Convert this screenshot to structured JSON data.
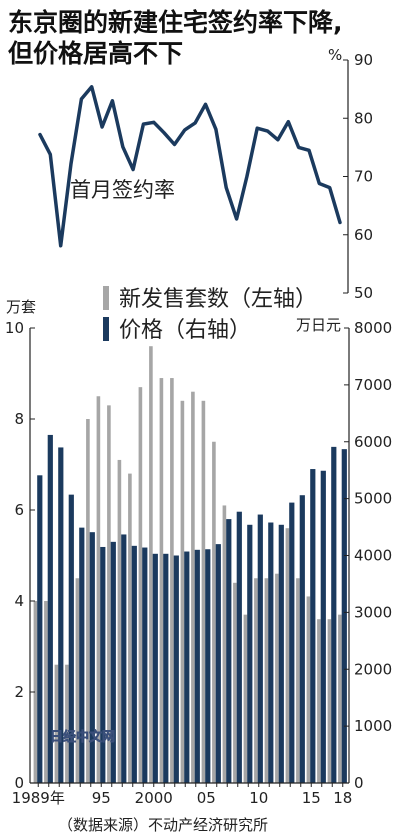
{
  "title_line1": "东京圈的新建住宅签约率下降,",
  "title_line2": "但价格居高不下",
  "source": "（数据来源）不动产经济研究所",
  "watermark": "日经中文网",
  "colors": {
    "sales": "#a6a6a6",
    "price": "#1b3a5e",
    "line": "#1b3a5e"
  },
  "chart_data": [
    {
      "type": "line",
      "label": "首月签约率",
      "unit": "%",
      "x": [
        1989,
        1990,
        1991,
        1992,
        1993,
        1994,
        1995,
        1996,
        1997,
        1998,
        1999,
        2000,
        2001,
        2002,
        2003,
        2004,
        2005,
        2006,
        2007,
        2008,
        2009,
        2010,
        2011,
        2012,
        2013,
        2014,
        2015,
        2016,
        2017,
        2018
      ],
      "values": [
        77.2,
        73.8,
        58.1,
        72.2,
        83.3,
        85.4,
        78.5,
        83.0,
        75.1,
        71.2,
        79.0,
        79.3,
        77.5,
        75.5,
        78.0,
        79.2,
        82.4,
        78.1,
        68.1,
        62.7,
        70.0,
        78.3,
        77.8,
        76.3,
        79.4,
        75.0,
        74.5,
        68.8,
        68.1,
        62.1
      ],
      "ylim": [
        50,
        90
      ],
      "yticks": [
        "50",
        "60",
        "70",
        "80",
        "90"
      ]
    },
    {
      "type": "bar",
      "x": [
        1989,
        1990,
        1991,
        1992,
        1993,
        1994,
        1995,
        1996,
        1997,
        1998,
        1999,
        2000,
        2001,
        2002,
        2003,
        2004,
        2005,
        2006,
        2007,
        2008,
        2009,
        2010,
        2011,
        2012,
        2013,
        2014,
        2015,
        2016,
        2017,
        2018
      ],
      "xtick_labels": [
        {
          "year": 1989,
          "label": "1989年"
        },
        {
          "year": 1995,
          "label": "95"
        },
        {
          "year": 2000,
          "label": "2000"
        },
        {
          "year": 2005,
          "label": "05"
        },
        {
          "year": 2010,
          "label": "10"
        },
        {
          "year": 2015,
          "label": "15"
        },
        {
          "year": 2018,
          "label": "18"
        }
      ],
      "series": [
        {
          "name": "新发售套数（左轴）",
          "axis": "left",
          "unit": "万套",
          "values": [
            4.0,
            4.0,
            2.6,
            2.6,
            4.5,
            8.0,
            8.5,
            8.3,
            7.1,
            6.8,
            8.7,
            9.6,
            8.9,
            8.9,
            8.4,
            8.6,
            8.4,
            7.5,
            6.1,
            4.4,
            3.7,
            4.5,
            4.5,
            4.6,
            5.6,
            4.5,
            4.1,
            3.6,
            3.6,
            3.7
          ],
          "ylim": [
            0,
            10
          ],
          "yticks": [
            "0",
            "2",
            "4",
            "6",
            "8",
            "10"
          ]
        },
        {
          "name": "价格（右轴）",
          "axis": "right",
          "unit": "万日元",
          "values": [
            5410,
            6120,
            5900,
            5070,
            4490,
            4410,
            4150,
            4240,
            4370,
            4170,
            4140,
            4030,
            4030,
            4000,
            4070,
            4100,
            4110,
            4200,
            4640,
            4770,
            4540,
            4720,
            4580,
            4540,
            4930,
            5060,
            5520,
            5490,
            5910,
            5870
          ],
          "ylim": [
            0,
            8000
          ],
          "yticks": [
            "0",
            "1000",
            "2000",
            "3000",
            "4000",
            "5000",
            "6000",
            "7000",
            "8000"
          ]
        }
      ]
    }
  ]
}
